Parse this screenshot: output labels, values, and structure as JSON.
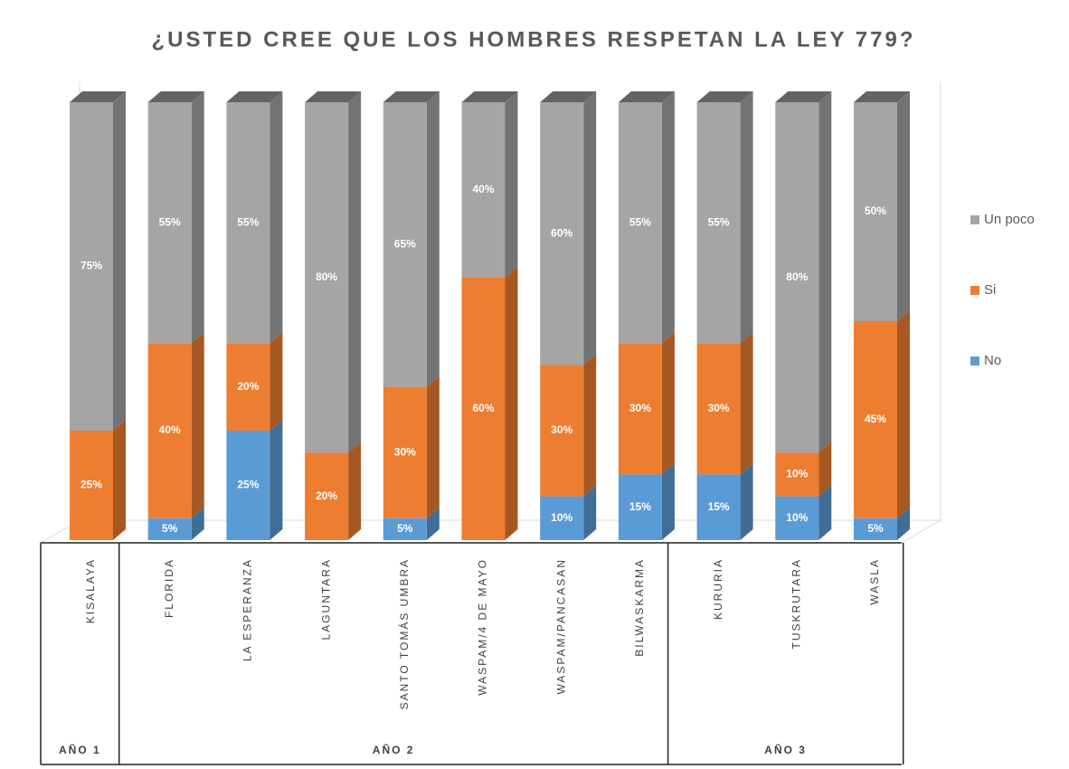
{
  "chart_data": {
    "type": "bar3d_stacked",
    "title": "¿USTED CREE QUE LOS HOMBRES RESPETAN LA LEY 779?",
    "groups": [
      {
        "label": "AÑO 1",
        "categories": [
          "KISALAYA"
        ]
      },
      {
        "label": "AÑO 2",
        "categories": [
          "FLORIDA",
          "LA ESPERANZA",
          "LAGUNTARA",
          "SANTO TOMÁS UMBRA",
          "WASPAM/4 DE MAYO",
          "WASPAM/PANCASAN",
          "BILWASKARMA"
        ]
      },
      {
        "label": "AÑO 3",
        "categories": [
          "KURURIA",
          "TUSKRUTARA",
          "WASLA"
        ]
      }
    ],
    "series": [
      {
        "name": "No",
        "color": "#5b9bd5",
        "values": [
          0,
          5,
          25,
          0,
          5,
          0,
          10,
          15,
          15,
          10,
          5
        ],
        "value_labels": [
          null,
          "5%",
          "25%",
          null,
          "5%",
          null,
          "10%",
          "15%",
          "15%",
          "10%",
          "5%"
        ]
      },
      {
        "name": "Si",
        "color": "#ed7d31",
        "values": [
          25,
          40,
          20,
          20,
          30,
          60,
          30,
          30,
          30,
          10,
          45
        ],
        "value_labels": [
          "25%",
          "40%",
          "20%",
          "20%",
          "30%",
          "60%",
          "30%",
          "30%",
          "30%",
          "10%",
          "45%"
        ]
      },
      {
        "name": "Un poco",
        "color": "#a5a5a5",
        "values": [
          75,
          55,
          55,
          80,
          65,
          40,
          60,
          55,
          55,
          80,
          50
        ],
        "value_labels": [
          "75%",
          "55%",
          "55%",
          "80%",
          "65%",
          "40%",
          "60%",
          "55%",
          "55%",
          "80%",
          "50%"
        ]
      }
    ],
    "legend": "right"
  }
}
